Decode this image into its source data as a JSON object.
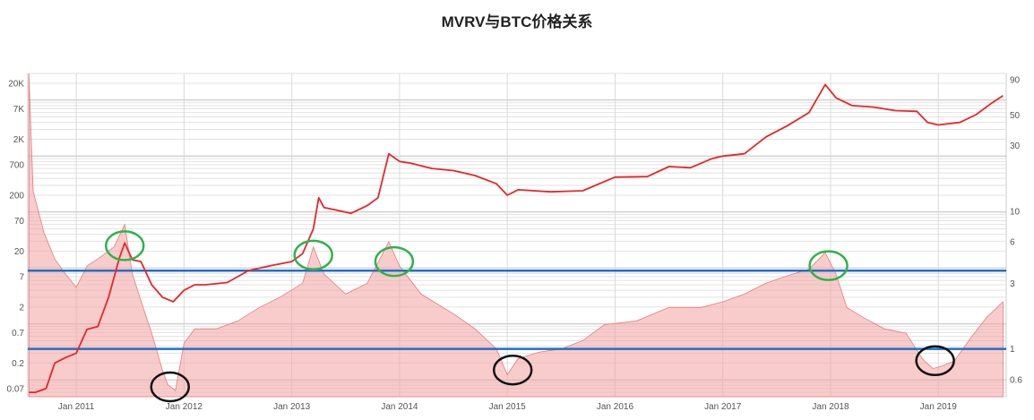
{
  "title": "MVRV与BTC价格关系",
  "chart_data": {
    "type": "line",
    "title": "MVRV与BTC价格关系",
    "x_ticks": [
      "Jan 2011",
      "Jan 2012",
      "Jan 2013",
      "Jan 2014",
      "Jan 2015",
      "Jan 2016",
      "Jan 2017",
      "Jan 2018",
      "Jan 2019"
    ],
    "x_range": [
      2010.55,
      2019.63
    ],
    "y_left": {
      "scale": "log",
      "range": [
        0.05,
        30000
      ],
      "ticks": [
        {
          "label": "20K",
          "value": 20000
        },
        {
          "label": "7K",
          "value": 7000
        },
        {
          "label": "2K",
          "value": 2000
        },
        {
          "label": "700",
          "value": 700
        },
        {
          "label": "200",
          "value": 200
        },
        {
          "label": "70",
          "value": 70
        },
        {
          "label": "20",
          "value": 20
        },
        {
          "label": "7",
          "value": 7
        },
        {
          "label": "2",
          "value": 2
        },
        {
          "label": "0.7",
          "value": 0.7
        },
        {
          "label": "0.2",
          "value": 0.2
        },
        {
          "label": "0.07",
          "value": 0.07
        }
      ]
    },
    "y_right": {
      "scale": "log",
      "range": [
        0.45,
        100
      ],
      "ticks": [
        {
          "label": "90",
          "value": 90
        },
        {
          "label": "50",
          "value": 50
        },
        {
          "label": "30",
          "value": 30
        },
        {
          "label": "10",
          "value": 10
        },
        {
          "label": "6",
          "value": 6
        },
        {
          "label": "3",
          "value": 3
        },
        {
          "label": "1",
          "value": 1
        },
        {
          "label": "0.6",
          "value": 0.6
        }
      ]
    },
    "series": [
      {
        "axis": "left",
        "color": "#e8262a",
        "style": "line",
        "points": [
          [
            2010.56,
            0.06
          ],
          [
            2010.62,
            0.06
          ],
          [
            2010.72,
            0.07
          ],
          [
            2010.8,
            0.2
          ],
          [
            2010.9,
            0.25
          ],
          [
            2011.0,
            0.3
          ],
          [
            2011.1,
            0.8
          ],
          [
            2011.2,
            0.9
          ],
          [
            2011.3,
            3
          ],
          [
            2011.4,
            15
          ],
          [
            2011.45,
            28
          ],
          [
            2011.52,
            14
          ],
          [
            2011.6,
            13
          ],
          [
            2011.7,
            5
          ],
          [
            2011.8,
            3
          ],
          [
            2011.9,
            2.5
          ],
          [
            2012.0,
            4
          ],
          [
            2012.1,
            5
          ],
          [
            2012.2,
            5
          ],
          [
            2012.4,
            5.5
          ],
          [
            2012.6,
            9
          ],
          [
            2012.8,
            11
          ],
          [
            2013.0,
            13
          ],
          [
            2013.1,
            18
          ],
          [
            2013.2,
            50
          ],
          [
            2013.25,
            180
          ],
          [
            2013.3,
            120
          ],
          [
            2013.4,
            110
          ],
          [
            2013.55,
            95
          ],
          [
            2013.7,
            130
          ],
          [
            2013.8,
            180
          ],
          [
            2013.9,
            1100
          ],
          [
            2014.0,
            800
          ],
          [
            2014.1,
            750
          ],
          [
            2014.3,
            600
          ],
          [
            2014.5,
            550
          ],
          [
            2014.7,
            450
          ],
          [
            2014.9,
            320
          ],
          [
            2015.0,
            200
          ],
          [
            2015.1,
            250
          ],
          [
            2015.4,
            230
          ],
          [
            2015.7,
            240
          ],
          [
            2015.9,
            350
          ],
          [
            2016.0,
            420
          ],
          [
            2016.3,
            430
          ],
          [
            2016.5,
            650
          ],
          [
            2016.7,
            620
          ],
          [
            2016.9,
            900
          ],
          [
            2017.0,
            1000
          ],
          [
            2017.2,
            1100
          ],
          [
            2017.4,
            2200
          ],
          [
            2017.6,
            3500
          ],
          [
            2017.8,
            6000
          ],
          [
            2017.95,
            19000
          ],
          [
            2018.05,
            11000
          ],
          [
            2018.2,
            8000
          ],
          [
            2018.4,
            7500
          ],
          [
            2018.6,
            6500
          ],
          [
            2018.8,
            6300
          ],
          [
            2018.9,
            4000
          ],
          [
            2019.0,
            3600
          ],
          [
            2019.2,
            4000
          ],
          [
            2019.35,
            5500
          ],
          [
            2019.5,
            9000
          ],
          [
            2019.6,
            12000
          ]
        ]
      },
      {
        "axis": "right",
        "color": "#f4a3a3",
        "style": "area",
        "points": [
          [
            2010.56,
            100
          ],
          [
            2010.6,
            14
          ],
          [
            2010.7,
            7
          ],
          [
            2010.8,
            4.5
          ],
          [
            2010.9,
            3.5
          ],
          [
            2011.0,
            2.8
          ],
          [
            2011.1,
            4
          ],
          [
            2011.2,
            4.5
          ],
          [
            2011.35,
            5.5
          ],
          [
            2011.45,
            8
          ],
          [
            2011.52,
            3.5
          ],
          [
            2011.62,
            2
          ],
          [
            2011.7,
            1.3
          ],
          [
            2011.8,
            0.7
          ],
          [
            2011.85,
            0.55
          ],
          [
            2011.92,
            0.5
          ],
          [
            2012.0,
            1.1
          ],
          [
            2012.1,
            1.4
          ],
          [
            2012.3,
            1.4
          ],
          [
            2012.5,
            1.6
          ],
          [
            2012.7,
            2
          ],
          [
            2012.9,
            2.4
          ],
          [
            2013.1,
            3
          ],
          [
            2013.2,
            5.5
          ],
          [
            2013.3,
            3.5
          ],
          [
            2013.5,
            2.5
          ],
          [
            2013.7,
            3
          ],
          [
            2013.9,
            6
          ],
          [
            2014.0,
            4
          ],
          [
            2014.2,
            2.5
          ],
          [
            2014.5,
            1.8
          ],
          [
            2014.7,
            1.4
          ],
          [
            2014.9,
            1.0
          ],
          [
            2015.0,
            0.65
          ],
          [
            2015.1,
            0.85
          ],
          [
            2015.3,
            0.95
          ],
          [
            2015.5,
            1.0
          ],
          [
            2015.7,
            1.15
          ],
          [
            2015.9,
            1.5
          ],
          [
            2016.2,
            1.6
          ],
          [
            2016.5,
            2
          ],
          [
            2016.8,
            2
          ],
          [
            2017.0,
            2.2
          ],
          [
            2017.2,
            2.5
          ],
          [
            2017.4,
            3
          ],
          [
            2017.6,
            3.4
          ],
          [
            2017.8,
            3.8
          ],
          [
            2017.95,
            5
          ],
          [
            2018.05,
            3.5
          ],
          [
            2018.15,
            2
          ],
          [
            2018.3,
            1.7
          ],
          [
            2018.5,
            1.4
          ],
          [
            2018.7,
            1.3
          ],
          [
            2018.85,
            0.85
          ],
          [
            2018.95,
            0.72
          ],
          [
            2019.05,
            0.76
          ],
          [
            2019.15,
            0.82
          ],
          [
            2019.3,
            1.2
          ],
          [
            2019.45,
            1.7
          ],
          [
            2019.6,
            2.2
          ]
        ]
      }
    ],
    "thresholds": [
      {
        "axis": "right",
        "value": 3.7,
        "color": "#1f6fc8"
      },
      {
        "axis": "right",
        "value": 1.0,
        "color": "#1f6fc8"
      }
    ],
    "annotations": [
      {
        "kind": "top",
        "color": "#2db34a",
        "x": 2011.45,
        "y": 25,
        "axis": "left"
      },
      {
        "kind": "top",
        "color": "#2db34a",
        "x": 2013.2,
        "y": 17,
        "axis": "left"
      },
      {
        "kind": "top",
        "color": "#2db34a",
        "x": 2013.95,
        "y": 13,
        "axis": "left"
      },
      {
        "kind": "top",
        "color": "#2db34a",
        "x": 2017.98,
        "y": 11,
        "axis": "left"
      },
      {
        "kind": "bottom",
        "color": "#111111",
        "x": 2011.87,
        "y": 0.075,
        "axis": "left"
      },
      {
        "kind": "bottom",
        "color": "#111111",
        "x": 2015.05,
        "y": 0.15,
        "axis": "left"
      },
      {
        "kind": "bottom",
        "color": "#111111",
        "x": 2018.97,
        "y": 0.22,
        "axis": "left"
      }
    ]
  }
}
